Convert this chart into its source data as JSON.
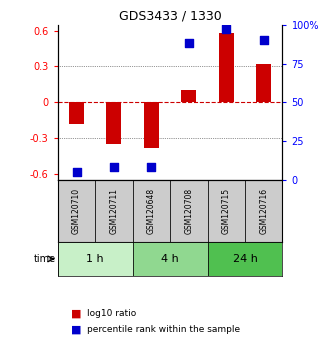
{
  "title": "GDS3433 / 1330",
  "samples": [
    "GSM120710",
    "GSM120711",
    "GSM120648",
    "GSM120708",
    "GSM120715",
    "GSM120716"
  ],
  "log10_ratio": [
    -0.18,
    -0.35,
    -0.38,
    0.1,
    0.58,
    0.32
  ],
  "percentile_rank": [
    5,
    8,
    8,
    88,
    97,
    90
  ],
  "time_groups": [
    {
      "label": "1 h",
      "start": 0,
      "end": 2,
      "color": "#c8f0c8"
    },
    {
      "label": "4 h",
      "start": 2,
      "end": 4,
      "color": "#90d890"
    },
    {
      "label": "24 h",
      "start": 4,
      "end": 6,
      "color": "#50c050"
    }
  ],
  "bar_color": "#cc0000",
  "square_color": "#0000cc",
  "ylim_left": [
    -0.65,
    0.65
  ],
  "ylim_right": [
    0,
    100
  ],
  "yticks_left": [
    -0.6,
    -0.3,
    0,
    0.3,
    0.6
  ],
  "yticks_right": [
    0,
    25,
    50,
    75,
    100
  ],
  "ytick_labels_right": [
    "0",
    "25",
    "50",
    "75",
    "100%"
  ],
  "hline_color": "#cc0000",
  "dotted_color": "#333333",
  "bg_color": "#ffffff",
  "plot_bg": "#ffffff",
  "sample_box_color": "#cccccc",
  "time_label": "time",
  "legend_log10": "log10 ratio",
  "legend_pct": "percentile rank within the sample",
  "bar_width": 0.4,
  "square_size": 30
}
